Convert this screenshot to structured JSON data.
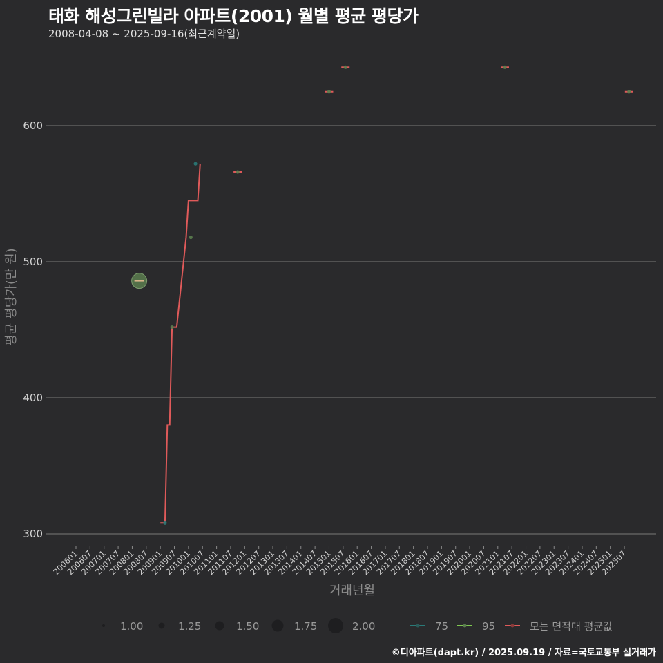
{
  "header": {
    "title": "태화 해성그린빌라 아파트(2001) 월별 평균 평당가",
    "subtitle": "2008-04-08 ~ 2025-09-16(최근계약일)"
  },
  "caption": "©디아파트(dapt.kr) / 2025.09.19 / 자료=국토교통부 실거래가",
  "colors": {
    "background": "#2a2a2c",
    "grid": "#6a6a6a",
    "series_75": "#2a7a78",
    "series_95": "#7ec850",
    "series_avg": "#e05a5a",
    "point_fill": "#5b7d4f",
    "point_line": "#d8b48a"
  },
  "chart_data": {
    "type": "line",
    "title": "태화 해성그린빌라 아파트(2001) 월별 평균 평당가",
    "subtitle": "2008-04-08 ~ 2025-09-16(최근계약일)",
    "xlabel": "거래년월",
    "ylabel": "평균 평당가(만 원)",
    "ylim": [
      285,
      660
    ],
    "yticks": [
      300,
      400,
      500,
      600
    ],
    "grid": true,
    "legend_position": "bottom",
    "x_tick_labels": [
      "200601",
      "200607",
      "200701",
      "200707",
      "200801",
      "200807",
      "200901",
      "200907",
      "201001",
      "201007",
      "201101",
      "201107",
      "201201",
      "201207",
      "201301",
      "201307",
      "201401",
      "201407",
      "201501",
      "201507",
      "201601",
      "201607",
      "201701",
      "201707",
      "201801",
      "201807",
      "201901",
      "201907",
      "202001",
      "202007",
      "202101",
      "202107",
      "202201",
      "202207",
      "202301",
      "202307",
      "202401",
      "202407",
      "202501",
      "202507"
    ],
    "size_legend": {
      "title": "",
      "values": [
        "1.00",
        "1.25",
        "1.50",
        "1.75",
        "2.00"
      ],
      "radii": [
        2,
        4.5,
        6.5,
        8.5,
        11
      ]
    },
    "color_legend": [
      {
        "name": "75",
        "color": "#2a7a78"
      },
      {
        "name": "95",
        "color": "#7ec850"
      },
      {
        "name": "모든 면적대 평균값",
        "color": "#e05a5a"
      }
    ],
    "series": [
      {
        "name": "75",
        "points": [
          {
            "x": "200903",
            "y": 308,
            "count": 1
          },
          {
            "x": "201004",
            "y": 572,
            "count": 1
          }
        ]
      },
      {
        "name": "95",
        "points": [
          {
            "x": "200804",
            "y": 486,
            "count": 2
          },
          {
            "x": "200906",
            "y": 452,
            "count": 1
          },
          {
            "x": "201002",
            "y": 518,
            "count": 1
          },
          {
            "x": "201110",
            "y": 566,
            "count": 1
          },
          {
            "x": "201501",
            "y": 625,
            "count": 1
          },
          {
            "x": "201508",
            "y": 643,
            "count": 1
          },
          {
            "x": "202104",
            "y": 643,
            "count": 1
          },
          {
            "x": "202509",
            "y": 625,
            "count": 1
          }
        ]
      },
      {
        "name": "모든 면적대 평균값",
        "points": [
          {
            "x": "200804",
            "y": 486
          },
          {
            "x": "200901",
            "y": 308
          },
          {
            "x": "200903",
            "y": 308
          },
          {
            "x": "200904",
            "y": 380
          },
          {
            "x": "200905",
            "y": 380
          },
          {
            "x": "200906",
            "y": 452
          },
          {
            "x": "200908",
            "y": 452
          },
          {
            "x": "200912",
            "y": 518
          },
          {
            "x": "201001",
            "y": 545
          },
          {
            "x": "201005",
            "y": 545
          },
          {
            "x": "201006",
            "y": 572
          },
          {
            "x": "201110",
            "y": 566
          },
          {
            "x": "201501",
            "y": 625
          },
          {
            "x": "201508",
            "y": 643
          },
          {
            "x": "202104",
            "y": 643
          },
          {
            "x": "202509",
            "y": 625
          }
        ]
      }
    ]
  }
}
